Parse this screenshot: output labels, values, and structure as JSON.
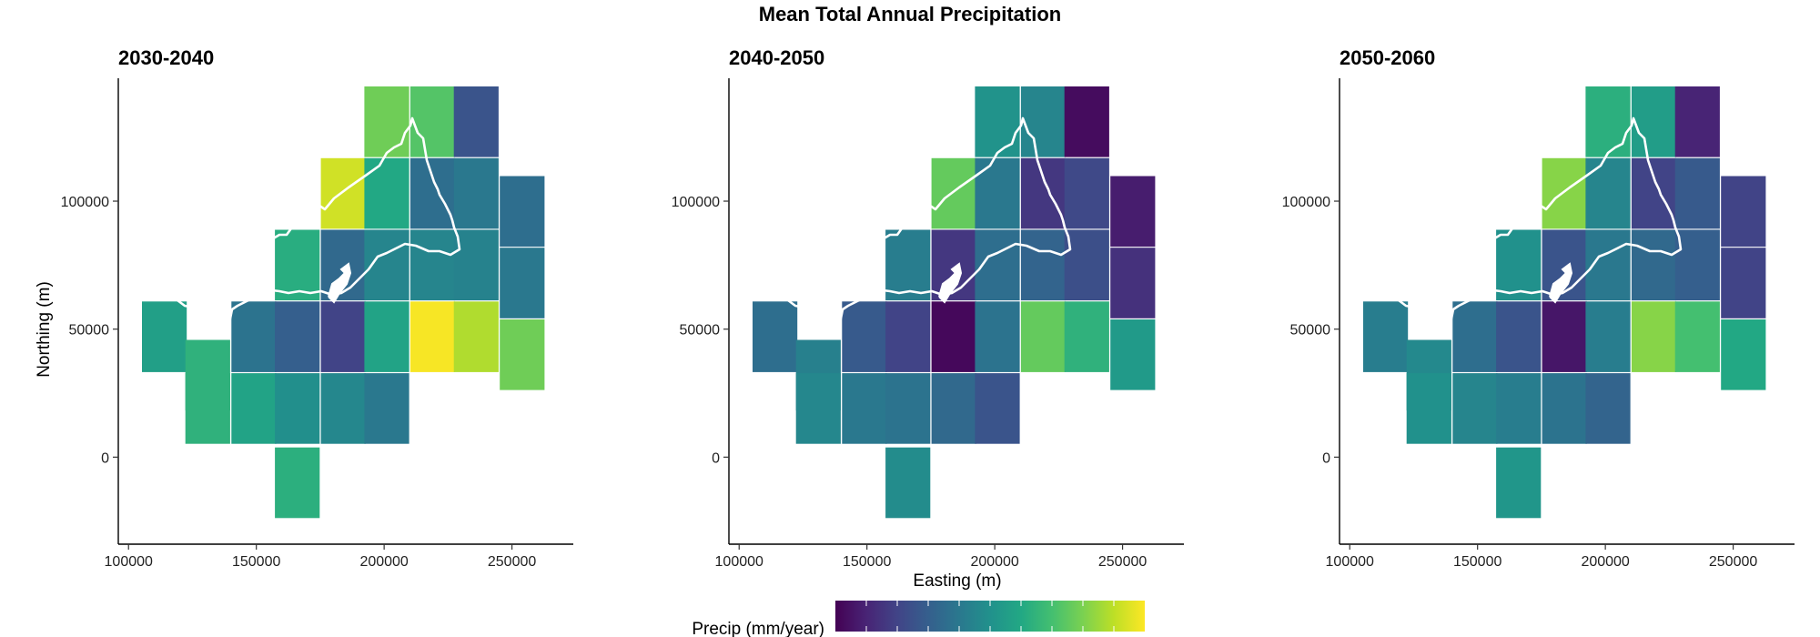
{
  "figure": {
    "title": "Mean Total Annual Precipitation",
    "xlabel": "Easting (m)",
    "ylabel": "Northing (m)",
    "legend_title": "Precip (mm/year)"
  },
  "chart_data": {
    "type": "heatmap",
    "title": "Mean Total Annual Precipitation",
    "xlabel": "Easting (m)",
    "ylabel": "Northing (m)",
    "xlim": [
      96000,
      274000
    ],
    "ylim": [
      -34000,
      148000
    ],
    "xticks": [
      100000,
      150000,
      200000,
      250000
    ],
    "yticks": [
      0,
      50000,
      100000
    ],
    "grid": false,
    "colorscale": "viridis",
    "legend": {
      "title": "Precip (mm/year)",
      "position": "bottom",
      "values_0_to_1": "relative precipitation, 0 = lowest (dark purple), 1 = highest (yellow)"
    },
    "note": "Tick labels on the colour bar are not printed; cell values are relative colour positions (0 = lowest, 1 = highest).",
    "panels": [
      {
        "name": "2030-2040",
        "cells": [
          {
            "x": 114000,
            "y": 47000,
            "v": 0.56
          },
          {
            "x": 131000,
            "y": 32000,
            "v": 0.64
          },
          {
            "x": 149000,
            "y": 47000,
            "v": 0.38
          },
          {
            "x": 166000,
            "y": 75000,
            "v": 0.62
          },
          {
            "x": 184000,
            "y": 103000,
            "v": 0.93
          },
          {
            "x": 201000,
            "y": 131000,
            "v": 0.78
          },
          {
            "x": 219000,
            "y": 131000,
            "v": 0.73
          },
          {
            "x": 236000,
            "y": 131000,
            "v": 0.26
          },
          {
            "x": 131000,
            "y": 19000,
            "v": 0.64
          },
          {
            "x": 149000,
            "y": 19000,
            "v": 0.58
          },
          {
            "x": 166000,
            "y": 47000,
            "v": 0.3
          },
          {
            "x": 184000,
            "y": 75000,
            "v": 0.34
          },
          {
            "x": 201000,
            "y": 103000,
            "v": 0.6
          },
          {
            "x": 219000,
            "y": 103000,
            "v": 0.36
          },
          {
            "x": 236000,
            "y": 103000,
            "v": 0.4
          },
          {
            "x": 254000,
            "y": 96000,
            "v": 0.36
          },
          {
            "x": 166000,
            "y": 19000,
            "v": 0.49
          },
          {
            "x": 184000,
            "y": 47000,
            "v": 0.2
          },
          {
            "x": 201000,
            "y": 75000,
            "v": 0.45
          },
          {
            "x": 219000,
            "y": 75000,
            "v": 0.45
          },
          {
            "x": 236000,
            "y": 75000,
            "v": 0.44
          },
          {
            "x": 254000,
            "y": 68000,
            "v": 0.4
          },
          {
            "x": 166000,
            "y": -10000,
            "v": 0.63
          },
          {
            "x": 184000,
            "y": 19000,
            "v": 0.46
          },
          {
            "x": 201000,
            "y": 19000,
            "v": 0.4
          },
          {
            "x": 201000,
            "y": 47000,
            "v": 0.58
          },
          {
            "x": 219000,
            "y": 47000,
            "v": 0.99
          },
          {
            "x": 236000,
            "y": 47000,
            "v": 0.88
          },
          {
            "x": 254000,
            "y": 40000,
            "v": 0.78
          }
        ]
      },
      {
        "name": "2040-2050",
        "cells": [
          {
            "x": 114000,
            "y": 47000,
            "v": 0.36
          },
          {
            "x": 131000,
            "y": 32000,
            "v": 0.43
          },
          {
            "x": 149000,
            "y": 47000,
            "v": 0.28
          },
          {
            "x": 166000,
            "y": 75000,
            "v": 0.42
          },
          {
            "x": 184000,
            "y": 103000,
            "v": 0.76
          },
          {
            "x": 201000,
            "y": 131000,
            "v": 0.51
          },
          {
            "x": 219000,
            "y": 131000,
            "v": 0.45
          },
          {
            "x": 236000,
            "y": 131000,
            "v": 0.03
          },
          {
            "x": 131000,
            "y": 19000,
            "v": 0.46
          },
          {
            "x": 149000,
            "y": 19000,
            "v": 0.4
          },
          {
            "x": 166000,
            "y": 47000,
            "v": 0.2
          },
          {
            "x": 184000,
            "y": 75000,
            "v": 0.16
          },
          {
            "x": 201000,
            "y": 103000,
            "v": 0.4
          },
          {
            "x": 219000,
            "y": 103000,
            "v": 0.16
          },
          {
            "x": 236000,
            "y": 103000,
            "v": 0.22
          },
          {
            "x": 254000,
            "y": 96000,
            "v": 0.08
          },
          {
            "x": 166000,
            "y": 19000,
            "v": 0.38
          },
          {
            "x": 184000,
            "y": 47000,
            "v": 0.02
          },
          {
            "x": 201000,
            "y": 75000,
            "v": 0.36
          },
          {
            "x": 219000,
            "y": 75000,
            "v": 0.32
          },
          {
            "x": 236000,
            "y": 75000,
            "v": 0.24
          },
          {
            "x": 254000,
            "y": 68000,
            "v": 0.14
          },
          {
            "x": 166000,
            "y": -10000,
            "v": 0.48
          },
          {
            "x": 184000,
            "y": 19000,
            "v": 0.34
          },
          {
            "x": 201000,
            "y": 19000,
            "v": 0.26
          },
          {
            "x": 201000,
            "y": 47000,
            "v": 0.38
          },
          {
            "x": 219000,
            "y": 47000,
            "v": 0.76
          },
          {
            "x": 236000,
            "y": 47000,
            "v": 0.64
          },
          {
            "x": 254000,
            "y": 40000,
            "v": 0.54
          }
        ]
      },
      {
        "name": "2050-2060",
        "cells": [
          {
            "x": 114000,
            "y": 47000,
            "v": 0.42
          },
          {
            "x": 131000,
            "y": 32000,
            "v": 0.47
          },
          {
            "x": 149000,
            "y": 47000,
            "v": 0.36
          },
          {
            "x": 166000,
            "y": 75000,
            "v": 0.5
          },
          {
            "x": 184000,
            "y": 103000,
            "v": 0.82
          },
          {
            "x": 201000,
            "y": 131000,
            "v": 0.63
          },
          {
            "x": 219000,
            "y": 131000,
            "v": 0.55
          },
          {
            "x": 236000,
            "y": 131000,
            "v": 0.1
          },
          {
            "x": 131000,
            "y": 19000,
            "v": 0.5
          },
          {
            "x": 149000,
            "y": 19000,
            "v": 0.45
          },
          {
            "x": 166000,
            "y": 47000,
            "v": 0.26
          },
          {
            "x": 184000,
            "y": 75000,
            "v": 0.26
          },
          {
            "x": 201000,
            "y": 103000,
            "v": 0.45
          },
          {
            "x": 219000,
            "y": 103000,
            "v": 0.2
          },
          {
            "x": 236000,
            "y": 103000,
            "v": 0.28
          },
          {
            "x": 254000,
            "y": 96000,
            "v": 0.2
          },
          {
            "x": 166000,
            "y": 19000,
            "v": 0.42
          },
          {
            "x": 184000,
            "y": 47000,
            "v": 0.06
          },
          {
            "x": 201000,
            "y": 75000,
            "v": 0.4
          },
          {
            "x": 219000,
            "y": 75000,
            "v": 0.34
          },
          {
            "x": 236000,
            "y": 75000,
            "v": 0.3
          },
          {
            "x": 254000,
            "y": 68000,
            "v": 0.2
          },
          {
            "x": 166000,
            "y": -10000,
            "v": 0.52
          },
          {
            "x": 184000,
            "y": 19000,
            "v": 0.38
          },
          {
            "x": 201000,
            "y": 19000,
            "v": 0.32
          },
          {
            "x": 201000,
            "y": 47000,
            "v": 0.42
          },
          {
            "x": 219000,
            "y": 47000,
            "v": 0.82
          },
          {
            "x": 236000,
            "y": 47000,
            "v": 0.7
          },
          {
            "x": 254000,
            "y": 40000,
            "v": 0.6
          }
        ]
      }
    ]
  }
}
